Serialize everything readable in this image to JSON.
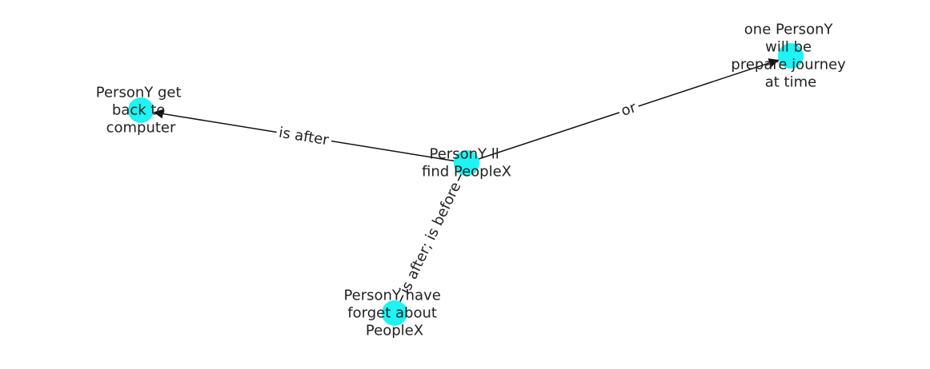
{
  "diagram": {
    "node_color": "#1ff3f3",
    "edge_color": "#111111",
    "label_color": "#222222",
    "nodes": [
      {
        "id": "center",
        "lines": [
          "PersonY ll",
          "find PeopleX"
        ]
      },
      {
        "id": "left",
        "lines": [
          "PersonY get",
          "back to",
          "computer"
        ]
      },
      {
        "id": "top-right",
        "lines": [
          "one PersonY",
          "will be",
          "prepare journey",
          "at time"
        ]
      },
      {
        "id": "bottom",
        "lines": [
          "PersonY have",
          "forget about",
          "PeopleX"
        ]
      }
    ],
    "edges": [
      {
        "source": "center",
        "target": "left",
        "label": "is after",
        "directed": true
      },
      {
        "source": "center",
        "target": "top-right",
        "label": "or",
        "directed": true
      },
      {
        "source": "center",
        "target": "bottom",
        "label": "is after;  is before",
        "directed": false
      }
    ]
  }
}
